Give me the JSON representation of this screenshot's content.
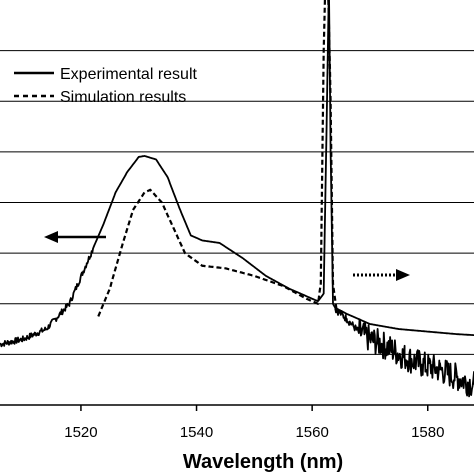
{
  "chart_data": {
    "type": "line",
    "xlabel": "Wavelength (nm)",
    "ylabel": "",
    "title": "",
    "xlim": [
      1506,
      1588
    ],
    "ylim": [
      0,
      8
    ],
    "x_ticks": [
      "1520",
      "1540",
      "1560",
      "1580"
    ],
    "x_tick_values": [
      1520,
      1540,
      1560,
      1580
    ],
    "grid": "horizontal",
    "legend_position": "top-left",
    "series": [
      {
        "name": "Experimental result",
        "style": "solid",
        "axis": "left",
        "x": [
          1506,
          1510,
          1514,
          1518,
          1521,
          1524,
          1526,
          1528,
          1530,
          1531,
          1533,
          1535,
          1537,
          1539,
          1541,
          1544,
          1548,
          1552,
          1556,
          1559,
          1561,
          1562,
          1562.5,
          1562.9,
          1563.2,
          1563.6,
          1564,
          1566,
          1570,
          1575,
          1580,
          1585,
          1588
        ],
        "y": [
          1.2,
          1.3,
          1.5,
          2.0,
          2.8,
          3.6,
          4.2,
          4.6,
          4.9,
          4.92,
          4.85,
          4.5,
          3.9,
          3.35,
          3.25,
          3.2,
          2.9,
          2.55,
          2.3,
          2.15,
          2.05,
          2.2,
          5.5,
          8.3,
          5.0,
          2.0,
          1.92,
          1.8,
          1.6,
          1.5,
          1.45,
          1.4,
          1.38
        ]
      },
      {
        "name": "Simulation results",
        "style": "dashed",
        "axis": "mixed",
        "x": [
          1523,
          1525,
          1527,
          1529,
          1531,
          1532,
          1534,
          1536,
          1538,
          1541,
          1545,
          1550,
          1555,
          1559,
          1561,
          1561.5,
          1562,
          1562.4,
          1562.8,
          1563.2,
          1563.6,
          1564.2
        ],
        "y": [
          1.75,
          2.3,
          3.1,
          3.85,
          4.2,
          4.25,
          4.0,
          3.5,
          3.0,
          2.75,
          2.7,
          2.55,
          2.35,
          2.1,
          2.0,
          2.4,
          7.0,
          8.9,
          8.0,
          6.0,
          2.4,
          1.9
        ]
      },
      {
        "name": "",
        "style": "solid",
        "axis": "right",
        "x": [
          1564,
          1566,
          1568,
          1570,
          1573,
          1576,
          1579,
          1582,
          1585,
          1588
        ],
        "y": [
          1.9,
          1.7,
          1.45,
          1.3,
          1.15,
          0.95,
          0.8,
          0.7,
          0.55,
          0.4
        ]
      }
    ],
    "arrows": [
      {
        "direction": "left",
        "style": "solid",
        "points_to": "left axis"
      },
      {
        "direction": "right",
        "style": "dotted",
        "points_to": "right axis"
      }
    ]
  }
}
